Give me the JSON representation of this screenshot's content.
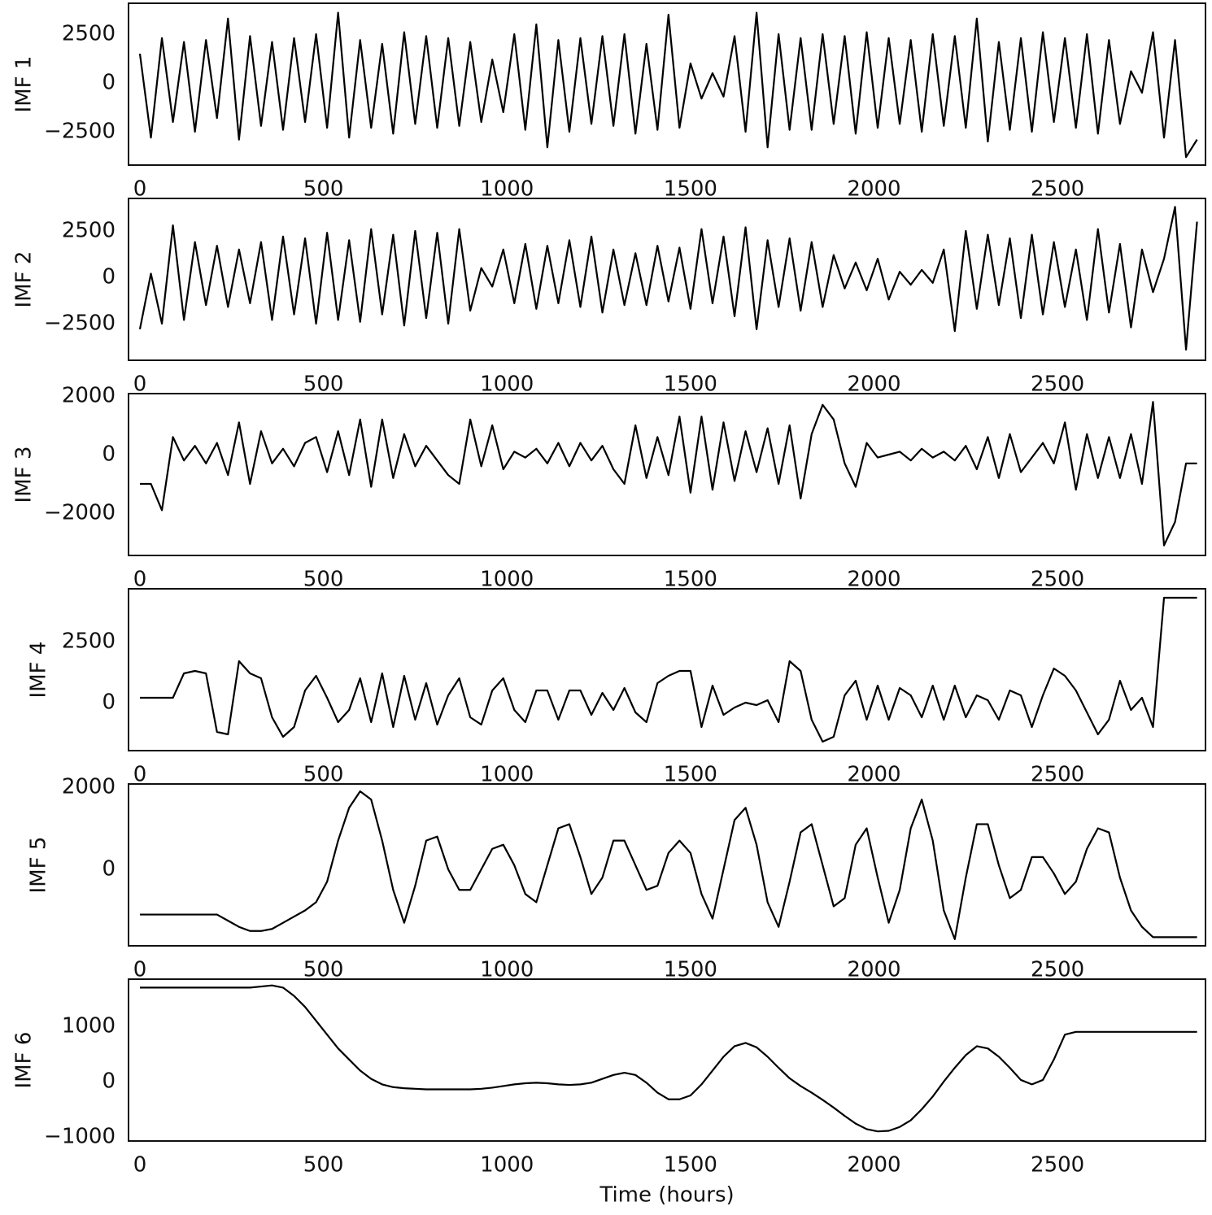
{
  "chart_data": [
    {
      "type": "line",
      "ylabel": "IMF 1",
      "color": "#000000",
      "xlim": [
        -31,
        2903
      ],
      "ylim": [
        -4208,
        4083
      ],
      "xticks": [
        0,
        500,
        1000,
        1500,
        2000,
        2500
      ],
      "yticks": [
        {
          "value": -2500,
          "label": "−2500"
        },
        0,
        2500
      ],
      "x": [
        0,
        30,
        60,
        90,
        120,
        150,
        180,
        210,
        240,
        270,
        300,
        330,
        360,
        390,
        420,
        450,
        480,
        510,
        540,
        570,
        600,
        630,
        660,
        690,
        720,
        750,
        780,
        810,
        840,
        870,
        900,
        930,
        960,
        990,
        1020,
        1050,
        1080,
        1110,
        1140,
        1170,
        1200,
        1230,
        1260,
        1290,
        1320,
        1350,
        1380,
        1410,
        1440,
        1470,
        1500,
        1530,
        1560,
        1590,
        1620,
        1650,
        1680,
        1710,
        1740,
        1770,
        1800,
        1830,
        1860,
        1890,
        1920,
        1950,
        1980,
        2010,
        2040,
        2070,
        2100,
        2130,
        2160,
        2190,
        2220,
        2250,
        2280,
        2310,
        2340,
        2370,
        2400,
        2430,
        2460,
        2490,
        2520,
        2550,
        2580,
        2610,
        2640,
        2670,
        2700,
        2730,
        2760,
        2790,
        2820,
        2850,
        2880
      ],
      "values": [
        1500,
        -2800,
        2300,
        -2000,
        2100,
        -2500,
        2200,
        -1800,
        3300,
        -2900,
        2400,
        -2200,
        2100,
        -2400,
        2300,
        -2000,
        2500,
        -2300,
        3600,
        -2800,
        2200,
        -2300,
        2000,
        -2600,
        2600,
        -2100,
        2400,
        -2300,
        2300,
        -2200,
        2100,
        -2000,
        1200,
        -1500,
        2500,
        -2400,
        3000,
        -3300,
        2200,
        -2500,
        2300,
        -2100,
        2400,
        -2200,
        2500,
        -2600,
        2000,
        -2400,
        3500,
        -2300,
        1000,
        -800,
        500,
        -700,
        2400,
        -2500,
        3600,
        -3300,
        2500,
        -2400,
        2300,
        -2400,
        2500,
        -2100,
        2400,
        -2600,
        2600,
        -2300,
        2300,
        -2100,
        2200,
        -2500,
        2500,
        -2200,
        2400,
        -2300,
        3300,
        -3000,
        2100,
        -2400,
        2300,
        -2500,
        2600,
        -2000,
        2300,
        -2300,
        2500,
        -2600,
        2200,
        -2100,
        600,
        -500,
        2600,
        -2800,
        2200,
        -3800,
        -2900
      ]
    },
    {
      "type": "line",
      "ylabel": "IMF 2",
      "color": "#000000",
      "xlim": [
        -31,
        2903
      ],
      "ylim": [
        -4474,
        4254
      ],
      "xticks": [
        0,
        500,
        1000,
        1500,
        2000,
        2500
      ],
      "yticks": [
        {
          "value": -2500,
          "label": "−2500"
        },
        0,
        2500
      ],
      "x": [
        0,
        30,
        60,
        90,
        120,
        150,
        180,
        210,
        240,
        270,
        300,
        330,
        360,
        390,
        420,
        450,
        480,
        510,
        540,
        570,
        600,
        630,
        660,
        690,
        720,
        750,
        780,
        810,
        840,
        870,
        900,
        930,
        960,
        990,
        1020,
        1050,
        1080,
        1110,
        1140,
        1170,
        1200,
        1230,
        1260,
        1290,
        1320,
        1350,
        1380,
        1410,
        1440,
        1470,
        1500,
        1530,
        1560,
        1590,
        1620,
        1650,
        1680,
        1710,
        1740,
        1770,
        1800,
        1830,
        1860,
        1890,
        1920,
        1950,
        1980,
        2010,
        2040,
        2070,
        2100,
        2130,
        2160,
        2190,
        2220,
        2250,
        2280,
        2310,
        2340,
        2370,
        2400,
        2430,
        2460,
        2490,
        2520,
        2550,
        2580,
        2610,
        2640,
        2670,
        2700,
        2730,
        2760,
        2790,
        2820,
        2850,
        2880
      ],
      "values": [
        -2800,
        200,
        -2500,
        2800,
        -2300,
        1900,
        -1500,
        1700,
        -1600,
        1500,
        -1400,
        1900,
        -2300,
        2200,
        -2000,
        2100,
        -2500,
        2400,
        -2300,
        2000,
        -2400,
        2600,
        -2000,
        2300,
        -2600,
        2500,
        -2200,
        2400,
        -2500,
        2600,
        -1800,
        500,
        -500,
        1500,
        -1400,
        1800,
        -1700,
        1700,
        -1400,
        2000,
        -1600,
        2200,
        -1900,
        1500,
        -1500,
        1300,
        -1500,
        1700,
        -1300,
        1600,
        -1700,
        2600,
        -1400,
        2200,
        -2100,
        2700,
        -2800,
        2000,
        -1600,
        2100,
        -1800,
        1900,
        -1600,
        1200,
        -600,
        800,
        -700,
        1000,
        -1200,
        300,
        -400,
        400,
        -300,
        1500,
        -2900,
        2500,
        -1700,
        2300,
        -1500,
        2100,
        -2200,
        2300,
        -2000,
        1900,
        -1600,
        1500,
        -2300,
        2600,
        -1900,
        1800,
        -2700,
        1500,
        -800,
        1000,
        3800,
        -3900,
        3000
      ]
    },
    {
      "type": "line",
      "ylabel": "IMF 3",
      "color": "#000000",
      "xlim": [
        -31,
        2903
      ],
      "ylim": [
        -3444,
        2083
      ],
      "xticks": [
        0,
        500,
        1000,
        1500,
        2000,
        2500
      ],
      "yticks": [
        {
          "value": -2000,
          "label": "−2000"
        },
        0,
        2000
      ],
      "x": [
        0,
        30,
        60,
        90,
        120,
        150,
        180,
        210,
        240,
        270,
        300,
        330,
        360,
        390,
        420,
        450,
        480,
        510,
        540,
        570,
        600,
        630,
        660,
        690,
        720,
        750,
        780,
        810,
        840,
        870,
        900,
        930,
        960,
        990,
        1020,
        1050,
        1080,
        1110,
        1140,
        1170,
        1200,
        1230,
        1260,
        1290,
        1320,
        1350,
        1380,
        1410,
        1440,
        1470,
        1500,
        1530,
        1560,
        1590,
        1620,
        1650,
        1680,
        1710,
        1740,
        1770,
        1800,
        1830,
        1860,
        1890,
        1920,
        1950,
        1980,
        2010,
        2040,
        2070,
        2100,
        2130,
        2160,
        2190,
        2220,
        2250,
        2280,
        2310,
        2340,
        2370,
        2400,
        2430,
        2460,
        2490,
        2520,
        2550,
        2580,
        2610,
        2640,
        2670,
        2700,
        2730,
        2760,
        2790,
        2820,
        2850,
        2880
      ],
      "values": [
        -1000,
        -1000,
        -1900,
        600,
        -200,
        300,
        -300,
        400,
        -700,
        1100,
        -1000,
        800,
        -300,
        200,
        -400,
        400,
        600,
        -600,
        800,
        -700,
        1200,
        -1100,
        1200,
        -800,
        700,
        -400,
        300,
        -200,
        -700,
        -1000,
        1200,
        -400,
        1000,
        -500,
        100,
        -100,
        200,
        -300,
        400,
        -400,
        400,
        -200,
        300,
        -500,
        -1000,
        1000,
        -800,
        600,
        -700,
        1300,
        -1300,
        1300,
        -1200,
        1100,
        -900,
        800,
        -600,
        900,
        -1000,
        1000,
        -1500,
        700,
        1700,
        1200,
        -300,
        -1100,
        400,
        -100,
        0,
        100,
        -200,
        200,
        -100,
        100,
        -200,
        300,
        -500,
        600,
        -800,
        700,
        -600,
        -100,
        400,
        -300,
        1100,
        -1200,
        700,
        -800,
        600,
        -800,
        700,
        -1000,
        1800,
        -3100,
        -2300,
        -300,
        -300
      ]
    },
    {
      "type": "line",
      "ylabel": "IMF 4",
      "color": "#000000",
      "xlim": [
        -31,
        2903
      ],
      "ylim": [
        -1967,
        4667
      ],
      "xticks": [
        0,
        500,
        1000,
        1500,
        2000,
        2500
      ],
      "yticks": [
        0,
        2500
      ],
      "x": [
        0,
        30,
        60,
        90,
        120,
        150,
        180,
        210,
        240,
        270,
        300,
        330,
        360,
        390,
        420,
        450,
        480,
        510,
        540,
        570,
        600,
        630,
        660,
        690,
        720,
        750,
        780,
        810,
        840,
        870,
        900,
        930,
        960,
        990,
        1020,
        1050,
        1080,
        1110,
        1140,
        1170,
        1200,
        1230,
        1260,
        1290,
        1320,
        1350,
        1380,
        1410,
        1440,
        1470,
        1500,
        1530,
        1560,
        1590,
        1620,
        1650,
        1680,
        1710,
        1740,
        1770,
        1800,
        1830,
        1860,
        1890,
        1920,
        1950,
        1980,
        2010,
        2040,
        2070,
        2100,
        2130,
        2160,
        2190,
        2220,
        2250,
        2280,
        2310,
        2340,
        2370,
        2400,
        2430,
        2460,
        2490,
        2520,
        2550,
        2580,
        2610,
        2640,
        2670,
        2700,
        2730,
        2760,
        2790,
        2820,
        2850,
        2880
      ],
      "values": [
        200,
        200,
        200,
        200,
        1200,
        1300,
        1200,
        -1200,
        -1300,
        1700,
        1200,
        1000,
        -600,
        -1400,
        -1000,
        500,
        1100,
        200,
        -800,
        -300,
        1000,
        -800,
        1200,
        -1000,
        1100,
        -700,
        800,
        -900,
        300,
        1000,
        -600,
        -900,
        500,
        1000,
        -300,
        -800,
        500,
        500,
        -700,
        500,
        500,
        -500,
        400,
        -300,
        600,
        -400,
        -800,
        800,
        1100,
        1300,
        1300,
        -1000,
        700,
        -500,
        -200,
        0,
        -100,
        100,
        -800,
        1700,
        1300,
        -700,
        -1600,
        -1400,
        300,
        900,
        -700,
        700,
        -700,
        600,
        300,
        -600,
        700,
        -700,
        700,
        -600,
        300,
        100,
        -700,
        500,
        300,
        -1000,
        300,
        1400,
        1100,
        500,
        -400,
        -1300,
        -700,
        900,
        -300,
        200,
        -1000,
        4300,
        4300,
        4300,
        4300
      ]
    },
    {
      "type": "line",
      "ylabel": "IMF 5",
      "color": "#000000",
      "xlim": [
        -31,
        2903
      ],
      "ylim": [
        -1861,
        2079
      ],
      "xticks": [
        0,
        500,
        1000,
        1500,
        2000,
        2500
      ],
      "yticks": [
        0,
        2000
      ],
      "x": [
        0,
        30,
        60,
        90,
        120,
        150,
        180,
        210,
        240,
        270,
        300,
        330,
        360,
        390,
        420,
        450,
        480,
        510,
        540,
        570,
        600,
        630,
        660,
        690,
        720,
        750,
        780,
        810,
        840,
        870,
        900,
        930,
        960,
        990,
        1020,
        1050,
        1080,
        1110,
        1140,
        1170,
        1200,
        1230,
        1260,
        1290,
        1320,
        1350,
        1380,
        1410,
        1440,
        1470,
        1500,
        1530,
        1560,
        1590,
        1620,
        1650,
        1680,
        1710,
        1740,
        1770,
        1800,
        1830,
        1860,
        1890,
        1920,
        1950,
        1980,
        2010,
        2040,
        2070,
        2100,
        2130,
        2160,
        2190,
        2220,
        2250,
        2280,
        2310,
        2340,
        2370,
        2400,
        2430,
        2460,
        2490,
        2520,
        2550,
        2580,
        2610,
        2640,
        2670,
        2700,
        2730,
        2760,
        2790,
        2820,
        2850,
        2880
      ],
      "values": [
        -1100,
        -1100,
        -1100,
        -1100,
        -1100,
        -1100,
        -1100,
        -1100,
        -1250,
        -1400,
        -1500,
        -1500,
        -1450,
        -1300,
        -1150,
        -1000,
        -800,
        -300,
        700,
        1500,
        1900,
        1700,
        700,
        -500,
        -1300,
        -400,
        700,
        800,
        0,
        -500,
        -500,
        0,
        500,
        600,
        100,
        -600,
        -800,
        100,
        1000,
        1100,
        300,
        -600,
        -200,
        700,
        700,
        100,
        -500,
        -400,
        400,
        700,
        400,
        -600,
        -1200,
        0,
        1200,
        1500,
        600,
        -800,
        -1400,
        -300,
        900,
        1100,
        100,
        -900,
        -700,
        600,
        1000,
        -200,
        -1300,
        -500,
        1000,
        1700,
        700,
        -1000,
        -1700,
        -200,
        1100,
        1100,
        100,
        -700,
        -500,
        300,
        300,
        -100,
        -600,
        -300,
        500,
        1000,
        900,
        -200,
        -1000,
        -1400,
        -1650,
        -1650,
        -1650,
        -1650,
        -1650
      ]
    },
    {
      "type": "line",
      "ylabel": "IMF 6",
      "xlabel": "Time (hours)",
      "color": "#000000",
      "xlim": [
        -31,
        2903
      ],
      "ylim": [
        -1074,
        1853
      ],
      "xticks": [
        0,
        500,
        1000,
        1500,
        2000,
        2500
      ],
      "yticks": [
        {
          "value": -1000,
          "label": "−1000"
        },
        0,
        1000
      ],
      "x": [
        0,
        30,
        60,
        90,
        120,
        150,
        180,
        210,
        240,
        270,
        300,
        330,
        360,
        390,
        420,
        450,
        480,
        510,
        540,
        570,
        600,
        630,
        660,
        690,
        720,
        750,
        780,
        810,
        840,
        870,
        900,
        930,
        960,
        990,
        1020,
        1050,
        1080,
        1110,
        1140,
        1170,
        1200,
        1230,
        1260,
        1290,
        1320,
        1350,
        1380,
        1410,
        1440,
        1470,
        1500,
        1530,
        1560,
        1590,
        1620,
        1650,
        1680,
        1710,
        1740,
        1770,
        1800,
        1830,
        1860,
        1890,
        1920,
        1950,
        1980,
        2010,
        2040,
        2070,
        2100,
        2130,
        2160,
        2190,
        2220,
        2250,
        2280,
        2310,
        2340,
        2370,
        2400,
        2430,
        2460,
        2490,
        2520,
        2550,
        2580,
        2610,
        2640,
        2670,
        2700,
        2730,
        2760,
        2790,
        2820,
        2850,
        2880
      ],
      "values": [
        1700,
        1700,
        1700,
        1700,
        1700,
        1700,
        1700,
        1700,
        1700,
        1700,
        1700,
        1720,
        1740,
        1700,
        1550,
        1350,
        1100,
        850,
        600,
        400,
        200,
        50,
        -50,
        -100,
        -120,
        -130,
        -140,
        -140,
        -140,
        -140,
        -140,
        -130,
        -110,
        -80,
        -50,
        -30,
        -20,
        -30,
        -50,
        -60,
        -50,
        -20,
        50,
        120,
        160,
        120,
        -20,
        -200,
        -320,
        -320,
        -250,
        -50,
        200,
        450,
        640,
        700,
        620,
        450,
        250,
        60,
        -80,
        -200,
        -330,
        -470,
        -620,
        -760,
        -860,
        -900,
        -890,
        -820,
        -700,
        -500,
        -270,
        0,
        250,
        480,
        640,
        600,
        450,
        250,
        30,
        -50,
        30,
        400,
        850,
        900,
        900,
        900,
        900,
        900,
        900,
        900,
        900,
        900,
        900,
        900,
        900
      ]
    }
  ]
}
